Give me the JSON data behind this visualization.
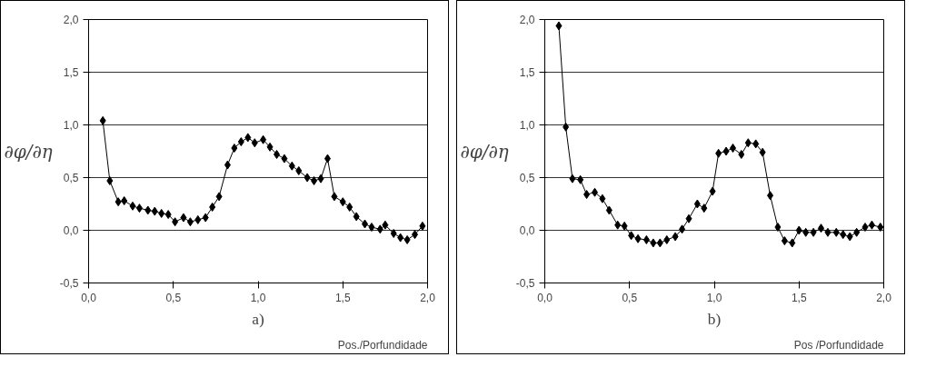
{
  "chart_data": [
    {
      "type": "line",
      "ylabel": "∂φ/∂η",
      "xlabel": "Pos./Porfundidade",
      "annotations": [
        "a)"
      ],
      "xlim": [
        0,
        2
      ],
      "ylim": [
        -0.5,
        2
      ],
      "xticks": [
        {
          "value": 0,
          "label": "0,0"
        },
        {
          "value": 0.5,
          "label": "0,5"
        },
        {
          "value": 1,
          "label": "1,0"
        },
        {
          "value": 1.5,
          "label": "1,5"
        },
        {
          "value": 2,
          "label": "2,0"
        }
      ],
      "yticks": [
        {
          "value": -0.5,
          "label": "-0,5"
        },
        {
          "value": 0,
          "label": "0,0"
        },
        {
          "value": 0.5,
          "label": "0,5"
        },
        {
          "value": 1,
          "label": "1,0"
        },
        {
          "value": 1.5,
          "label": "1,5"
        },
        {
          "value": 2,
          "label": "2,0"
        }
      ],
      "grid": "y",
      "marker": "diamond",
      "series": [
        {
          "color": "#000000",
          "x": [
            0.084,
            0.125,
            0.175,
            0.21,
            0.26,
            0.3,
            0.35,
            0.39,
            0.43,
            0.47,
            0.51,
            0.56,
            0.6,
            0.645,
            0.69,
            0.73,
            0.77,
            0.82,
            0.86,
            0.9,
            0.94,
            0.98,
            1.03,
            1.07,
            1.11,
            1.155,
            1.2,
            1.24,
            1.29,
            1.33,
            1.37,
            1.41,
            1.45,
            1.5,
            1.54,
            1.58,
            1.63,
            1.67,
            1.72,
            1.75,
            1.8,
            1.84,
            1.88,
            1.925,
            1.97
          ],
          "values": [
            1.04,
            0.47,
            0.27,
            0.28,
            0.23,
            0.21,
            0.19,
            0.18,
            0.16,
            0.15,
            0.08,
            0.12,
            0.08,
            0.1,
            0.12,
            0.22,
            0.32,
            0.62,
            0.78,
            0.84,
            0.88,
            0.83,
            0.86,
            0.79,
            0.72,
            0.68,
            0.61,
            0.565,
            0.5,
            0.47,
            0.49,
            0.68,
            0.32,
            0.27,
            0.22,
            0.13,
            0.06,
            0.03,
            0.01,
            0.05,
            -0.03,
            -0.07,
            -0.09,
            -0.04,
            0.04
          ]
        }
      ]
    },
    {
      "type": "line",
      "ylabel": "∂φ/∂η",
      "xlabel": "Pos /Porfundidade",
      "annotations": [
        "b)"
      ],
      "xlim": [
        0,
        2
      ],
      "ylim": [
        -0.5,
        2
      ],
      "xticks": [
        {
          "value": 0,
          "label": "0,0"
        },
        {
          "value": 0.5,
          "label": "0,5"
        },
        {
          "value": 1,
          "label": "1,0"
        },
        {
          "value": 1.5,
          "label": "1,5"
        },
        {
          "value": 2,
          "label": "2,0"
        }
      ],
      "yticks": [
        {
          "value": -0.5,
          "label": "-0,5"
        },
        {
          "value": 0,
          "label": "0,0"
        },
        {
          "value": 0.5,
          "label": "0,5"
        },
        {
          "value": 1,
          "label": "1,0"
        },
        {
          "value": 1.5,
          "label": "1,5"
        },
        {
          "value": 2,
          "label": "2,0"
        }
      ],
      "grid": "y",
      "marker": "diamond",
      "series": [
        {
          "color": "#000000",
          "x": [
            0.083,
            0.124,
            0.163,
            0.21,
            0.247,
            0.295,
            0.34,
            0.38,
            0.43,
            0.47,
            0.51,
            0.55,
            0.6,
            0.64,
            0.68,
            0.72,
            0.77,
            0.81,
            0.85,
            0.9,
            0.94,
            0.99,
            1.025,
            1.07,
            1.11,
            1.16,
            1.2,
            1.245,
            1.285,
            1.33,
            1.375,
            1.415,
            1.46,
            1.5,
            1.54,
            1.585,
            1.63,
            1.67,
            1.72,
            1.76,
            1.8,
            1.84,
            1.89,
            1.93,
            1.98
          ],
          "values": [
            1.94,
            0.98,
            0.49,
            0.48,
            0.34,
            0.36,
            0.3,
            0.19,
            0.05,
            0.04,
            -0.05,
            -0.08,
            -0.09,
            -0.12,
            -0.12,
            -0.09,
            -0.06,
            0.01,
            0.11,
            0.25,
            0.21,
            0.37,
            0.73,
            0.75,
            0.78,
            0.72,
            0.83,
            0.82,
            0.74,
            0.33,
            0.03,
            -0.1,
            -0.12,
            0.0,
            -0.02,
            -0.02,
            0.02,
            -0.02,
            -0.02,
            -0.04,
            -0.06,
            -0.02,
            0.03,
            0.05,
            0.03
          ]
        }
      ]
    }
  ]
}
